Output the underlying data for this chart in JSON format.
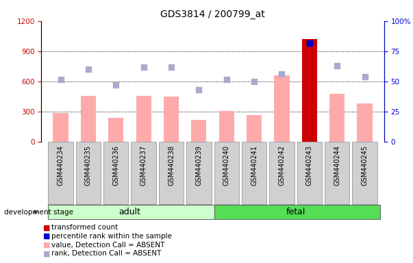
{
  "title": "GDS3814 / 200799_at",
  "samples": [
    "GSM440234",
    "GSM440235",
    "GSM440236",
    "GSM440237",
    "GSM440238",
    "GSM440239",
    "GSM440240",
    "GSM440241",
    "GSM440242",
    "GSM440243",
    "GSM440244",
    "GSM440245"
  ],
  "bar_values": [
    290,
    460,
    240,
    455,
    450,
    220,
    310,
    265,
    660,
    1020,
    480,
    380
  ],
  "rank_values": [
    52,
    60,
    47,
    62,
    62,
    43,
    52,
    50,
    56,
    82,
    63,
    54
  ],
  "highlight_index": 9,
  "highlight_bar_color": "#cc0000",
  "highlight_rank_color": "#0000cc",
  "normal_bar_color": "#ffaaaa",
  "normal_rank_color": "#aaaacc",
  "adult_samples": 6,
  "fetal_samples": 6,
  "adult_label": "adult",
  "fetal_label": "fetal",
  "adult_color": "#ccffcc",
  "fetal_color": "#55dd55",
  "stage_label": "development stage",
  "ylim_left": [
    0,
    1200
  ],
  "ylim_right": [
    0,
    100
  ],
  "yticks_left": [
    0,
    300,
    600,
    900,
    1200
  ],
  "yticks_right": [
    0,
    25,
    50,
    75,
    100
  ],
  "grid_values": [
    300,
    600,
    900
  ],
  "left_axis_color": "#cc0000",
  "right_axis_color": "#0000cc",
  "legend_items": [
    {
      "label": "transformed count",
      "color": "#cc0000"
    },
    {
      "label": "percentile rank within the sample",
      "color": "#0000cc"
    },
    {
      "label": "value, Detection Call = ABSENT",
      "color": "#ffaaaa"
    },
    {
      "label": "rank, Detection Call = ABSENT",
      "color": "#aaaacc"
    }
  ]
}
